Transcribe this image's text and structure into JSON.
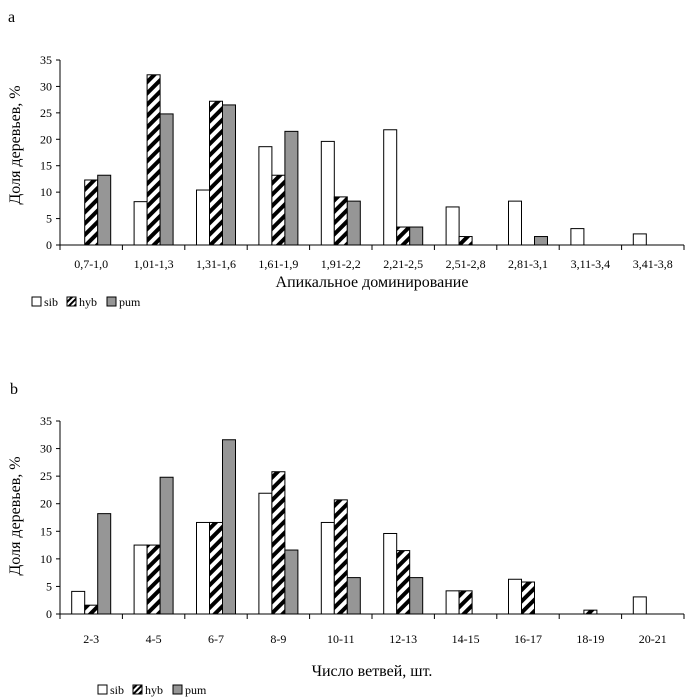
{
  "chart_data": [
    {
      "type": "bar",
      "panel_label": "a",
      "xlabel": "Апикальное доминирование",
      "ylabel": "Доля деревьев, %",
      "ylim": [
        0,
        35
      ],
      "yticks": [
        0,
        5,
        10,
        15,
        20,
        25,
        30,
        35
      ],
      "categories": [
        "0,7-1,0",
        "1,01-1,3",
        "1,31-1,6",
        "1,61-1,9",
        "1,91-2,2",
        "2,21-2,5",
        "2,51-2,8",
        "2,81-3,1",
        "3,11-3,4",
        "3,41-3,8"
      ],
      "series": [
        {
          "name": "sib",
          "fill": "white",
          "values": [
            0,
            8.2,
            10.4,
            18.6,
            19.6,
            21.8,
            7.2,
            8.3,
            3.1,
            2.1
          ]
        },
        {
          "name": "hyb",
          "fill": "hatch",
          "values": [
            12.3,
            32.2,
            27.2,
            13.2,
            9.1,
            3.4,
            1.6,
            0,
            0,
            0
          ]
        },
        {
          "name": "pum",
          "fill": "gray",
          "values": [
            13.2,
            24.8,
            26.5,
            21.5,
            8.3,
            3.4,
            0,
            1.6,
            0,
            0
          ]
        }
      ],
      "legend_position": "bottom-left",
      "grid": false
    },
    {
      "type": "bar",
      "panel_label": "b",
      "xlabel": "Число ветвей, шт.",
      "ylabel": "Доля деревьев, %",
      "ylim": [
        0,
        35
      ],
      "yticks": [
        0,
        5,
        10,
        15,
        20,
        25,
        30,
        35
      ],
      "categories": [
        "2-3",
        "4-5",
        "6-7",
        "8-9",
        "10-11",
        "12-13",
        "14-15",
        "16-17",
        "18-19",
        "20-21"
      ],
      "series": [
        {
          "name": "sib",
          "fill": "white",
          "values": [
            4.1,
            12.5,
            16.6,
            21.9,
            16.6,
            14.6,
            4.2,
            6.3,
            0,
            3.1
          ]
        },
        {
          "name": "hyb",
          "fill": "hatch",
          "values": [
            1.6,
            12.5,
            16.6,
            25.8,
            20.7,
            11.5,
            4.2,
            5.8,
            0.7,
            0
          ]
        },
        {
          "name": "pum",
          "fill": "gray",
          "values": [
            18.2,
            24.8,
            31.6,
            11.6,
            6.6,
            6.6,
            0,
            0,
            0,
            0
          ]
        }
      ],
      "legend_position": "bottom-left",
      "grid": false
    }
  ],
  "colors": {
    "sib": "#ffffff",
    "hyb_stripe": "#000000",
    "pum": "#969696",
    "axis": "#000000"
  }
}
